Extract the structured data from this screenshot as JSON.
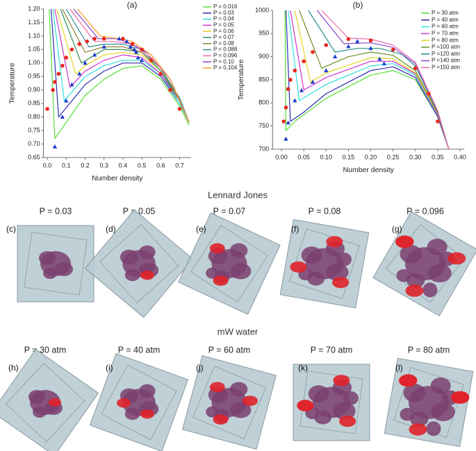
{
  "chart_data": [
    {
      "type": "line",
      "title": "(a)",
      "x_label": "Number density",
      "y_label": "Temperature",
      "xlim": [
        -0.02,
        0.76
      ],
      "ylim": [
        0.65,
        1.2
      ],
      "xticks": [
        {
          "value": 0,
          "label": "0.0"
        },
        0.1,
        0.2,
        0.3,
        0.4,
        0.5,
        0.6,
        0.7
      ],
      "yticks": [
        0.65,
        {
          "value": 0.7,
          "label": "0.70"
        },
        0.75,
        {
          "value": 0.8,
          "label": "0.80"
        },
        0.85,
        {
          "value": 0.9,
          "label": "0.90"
        },
        0.95,
        {
          "value": 1,
          "label": "1.00"
        },
        1.05,
        {
          "value": 1.1,
          "label": "1.10"
        },
        1.15,
        {
          "value": 1.2,
          "label": "1.20"
        }
      ],
      "series": [
        {
          "name": "P = 0.016",
          "color": "#55dd33",
          "x": [
            0.01,
            0.04,
            0.2,
            0.3,
            0.4,
            0.5,
            0.6,
            0.7,
            0.75
          ],
          "values": [
            1.2,
            0.72,
            0.88,
            0.94,
            0.98,
            0.99,
            0.94,
            0.84,
            0.77
          ]
        },
        {
          "name": "P = 0.03",
          "color": "#2a2ab0",
          "x": [
            0.02,
            0.06,
            0.2,
            0.3,
            0.4,
            0.5,
            0.6,
            0.7,
            0.75
          ],
          "values": [
            1.2,
            0.8,
            0.92,
            0.97,
            1.0,
            1.0,
            0.95,
            0.85,
            0.78
          ]
        },
        {
          "name": "P = 0.04",
          "color": "#33dddd",
          "x": [
            0.03,
            0.09,
            0.2,
            0.3,
            0.4,
            0.5,
            0.6,
            0.7,
            0.75
          ],
          "values": [
            1.2,
            0.86,
            0.95,
            0.99,
            1.01,
            1.01,
            0.96,
            0.85,
            0.78
          ]
        },
        {
          "name": "P = 0.05",
          "color": "#cc33cc",
          "x": [
            0.04,
            0.12,
            0.2,
            0.3,
            0.4,
            0.5,
            0.6,
            0.7,
            0.75
          ],
          "values": [
            1.2,
            0.91,
            0.97,
            1.01,
            1.03,
            1.02,
            0.96,
            0.86,
            0.78
          ]
        },
        {
          "name": "P = 0.06",
          "color": "#e6d21e",
          "x": [
            0.05,
            0.15,
            0.2,
            0.3,
            0.4,
            0.5,
            0.6,
            0.7,
            0.75
          ],
          "values": [
            1.2,
            0.96,
            0.99,
            1.03,
            1.04,
            1.03,
            0.97,
            0.86,
            0.78
          ]
        },
        {
          "name": "P = 0.07",
          "color": "#2e8b57",
          "x": [
            0.07,
            0.18,
            0.3,
            0.4,
            0.5,
            0.6,
            0.7,
            0.75
          ],
          "values": [
            1.2,
            1.0,
            1.05,
            1.05,
            1.04,
            0.97,
            0.86,
            0.78
          ]
        },
        {
          "name": "P = 0.08",
          "color": "#8b7d3a",
          "x": [
            0.08,
            0.2,
            0.3,
            0.4,
            0.5,
            0.6,
            0.7,
            0.75
          ],
          "values": [
            1.2,
            1.04,
            1.06,
            1.06,
            1.04,
            0.98,
            0.86,
            0.78
          ]
        },
        {
          "name": "P = 0.088",
          "color": "#2a8f8f",
          "x": [
            0.1,
            0.22,
            0.3,
            0.4,
            0.5,
            0.6,
            0.7,
            0.75
          ],
          "values": [
            1.2,
            1.06,
            1.07,
            1.07,
            1.05,
            0.98,
            0.87,
            0.78
          ]
        },
        {
          "name": "P = 0.096",
          "color": "#ee66aa",
          "x": [
            0.12,
            0.25,
            0.35,
            0.45,
            0.55,
            0.65,
            0.75
          ],
          "values": [
            1.2,
            1.08,
            1.08,
            1.07,
            1.02,
            0.94,
            0.78
          ]
        },
        {
          "name": "P = 0.10",
          "color": "#8844cc",
          "x": [
            0.14,
            0.27,
            0.37,
            0.45,
            0.55,
            0.65,
            0.75
          ],
          "values": [
            1.2,
            1.09,
            1.09,
            1.07,
            1.03,
            0.94,
            0.78
          ]
        },
        {
          "name": "P = 0.104",
          "color": "#ff9922",
          "x": [
            0.16,
            0.28,
            0.38,
            0.45,
            0.55,
            0.65,
            0.75
          ],
          "values": [
            1.2,
            1.1,
            1.09,
            1.08,
            1.03,
            0.94,
            0.78
          ]
        },
        {
          "marker": "circle",
          "color": "#e8281e",
          "x": [
            0.0,
            0.03,
            0.04,
            0.06,
            0.08,
            0.1,
            0.13,
            0.17,
            0.21,
            0.25,
            0.3,
            0.4,
            0.45,
            0.5,
            0.55,
            0.6,
            0.65,
            0.7
          ],
          "values": [
            0.83,
            0.9,
            0.93,
            0.96,
            0.99,
            1.02,
            1.05,
            1.07,
            1.08,
            1.09,
            1.09,
            1.09,
            1.07,
            1.05,
            1.01,
            0.96,
            0.9,
            0.83
          ]
        },
        {
          "marker": "triangle",
          "color": "#1f3fcc",
          "x": [
            0.04,
            0.08,
            0.1,
            0.13,
            0.17,
            0.2,
            0.25,
            0.3,
            0.38,
            0.42,
            0.44,
            0.46,
            0.47,
            0.48,
            0.5
          ],
          "values": [
            0.69,
            0.8,
            0.86,
            0.92,
            0.96,
            1.0,
            1.03,
            1.06,
            1.09,
            1.08,
            1.06,
            1.05,
            1.04,
            1.02,
            1.01
          ]
        }
      ]
    },
    {
      "type": "line",
      "title": "(b)",
      "x_label": "Number density",
      "y_label": "Temperature",
      "xlim": [
        -0.02,
        0.41
      ],
      "ylim": [
        700,
        1000
      ],
      "xticks": [
        {
          "value": 0,
          "label": "0.00"
        },
        0.05,
        {
          "value": 0.1,
          "label": "0.10"
        },
        0.15,
        {
          "value": 0.2,
          "label": "0.20"
        },
        0.25,
        {
          "value": 0.3,
          "label": "0.30"
        },
        0.35,
        {
          "value": 0.4,
          "label": "0.40"
        }
      ],
      "yticks": [
        700,
        750,
        800,
        850,
        900,
        950,
        1000
      ],
      "series": [
        {
          "name": "P = 30 atm",
          "color": "#55dd33",
          "x": [
            0.008,
            0.01,
            0.03,
            0.1,
            0.2,
            0.25,
            0.3,
            0.35,
            0.375
          ],
          "values": [
            1000,
            740,
            760,
            810,
            860,
            870,
            850,
            770,
            700
          ]
        },
        {
          "name": "P = 40 atm",
          "color": "#2a2ab0",
          "x": [
            0.01,
            0.02,
            0.05,
            0.1,
            0.2,
            0.25,
            0.3,
            0.35,
            0.375
          ],
          "values": [
            1000,
            760,
            780,
            820,
            870,
            878,
            855,
            770,
            700
          ]
        },
        {
          "name": "P = 60 atm",
          "color": "#33dddd",
          "x": [
            0.015,
            0.04,
            0.1,
            0.2,
            0.25,
            0.3,
            0.35,
            0.375
          ],
          "values": [
            1000,
            805,
            840,
            880,
            885,
            860,
            775,
            700
          ]
        },
        {
          "name": "P = 70 atm",
          "color": "#cc33cc",
          "x": [
            0.02,
            0.05,
            0.1,
            0.2,
            0.25,
            0.3,
            0.35,
            0.375
          ],
          "values": [
            1000,
            828,
            855,
            890,
            890,
            863,
            775,
            700
          ]
        },
        {
          "name": "P = 80 atm",
          "color": "#e6d21e",
          "x": [
            0.03,
            0.065,
            0.1,
            0.2,
            0.25,
            0.3,
            0.35,
            0.375
          ],
          "values": [
            1000,
            845,
            865,
            898,
            895,
            865,
            777,
            700
          ]
        },
        {
          "name": "P =100 atm",
          "color": "#6b8e23",
          "x": [
            0.04,
            0.09,
            0.15,
            0.2,
            0.25,
            0.3,
            0.35,
            0.375
          ],
          "values": [
            1000,
            875,
            900,
            910,
            903,
            870,
            778,
            700
          ]
        },
        {
          "name": "P =120 atm",
          "color": "#2a8f8f",
          "x": [
            0.06,
            0.12,
            0.17,
            0.22,
            0.27,
            0.3,
            0.35,
            0.375
          ],
          "values": [
            1000,
            910,
            918,
            918,
            905,
            880,
            780,
            700
          ]
        },
        {
          "name": "P =140 atm",
          "color": "#8844cc",
          "x": [
            0.08,
            0.14,
            0.2,
            0.25,
            0.3,
            0.35,
            0.375
          ],
          "values": [
            1000,
            928,
            930,
            920,
            885,
            782,
            700
          ]
        },
        {
          "name": "P =150 atm",
          "color": "#ee66aa",
          "x": [
            0.09,
            0.15,
            0.2,
            0.25,
            0.3,
            0.35,
            0.375
          ],
          "values": [
            1000,
            940,
            938,
            925,
            888,
            783,
            700
          ]
        },
        {
          "marker": "circle",
          "color": "#e8281e",
          "x": [
            0.005,
            0.01,
            0.015,
            0.02,
            0.03,
            0.05,
            0.07,
            0.1,
            0.15,
            0.2,
            0.25,
            0.3,
            0.33,
            0.35
          ],
          "values": [
            760,
            790,
            830,
            850,
            870,
            890,
            910,
            925,
            938,
            935,
            915,
            875,
            820,
            760
          ]
        },
        {
          "marker": "triangle",
          "color": "#1f3fcc",
          "x": [
            0.01,
            0.015,
            0.03,
            0.045,
            0.07,
            0.1,
            0.12,
            0.15,
            0.17,
            0.2,
            0.22,
            0.23
          ],
          "values": [
            722,
            757,
            805,
            827,
            845,
            870,
            900,
            922,
            933,
            918,
            895,
            885
          ]
        }
      ]
    }
  ],
  "sections": [
    {
      "title": "Lennard Jones",
      "panels": [
        {
          "caption": "P = 0.03",
          "label": "(c)"
        },
        {
          "caption": "P = 0.05",
          "label": "(d)"
        },
        {
          "caption": "P = 0.07",
          "label": "(e)"
        },
        {
          "caption": "P = 0.08",
          "label": "(f)"
        },
        {
          "caption": "P = 0.096",
          "label": "(g)"
        }
      ]
    },
    {
      "title": "mW water",
      "panels": [
        {
          "caption": "P = 30 atm",
          "label": "(h)"
        },
        {
          "caption": "P = 40 atm",
          "label": "(i)"
        },
        {
          "caption": "P = 60 atm",
          "label": "(j)"
        },
        {
          "caption": "P = 70 atm",
          "label": "(k)"
        },
        {
          "caption": "P = 80 atm",
          "label": "(l)"
        }
      ]
    }
  ]
}
